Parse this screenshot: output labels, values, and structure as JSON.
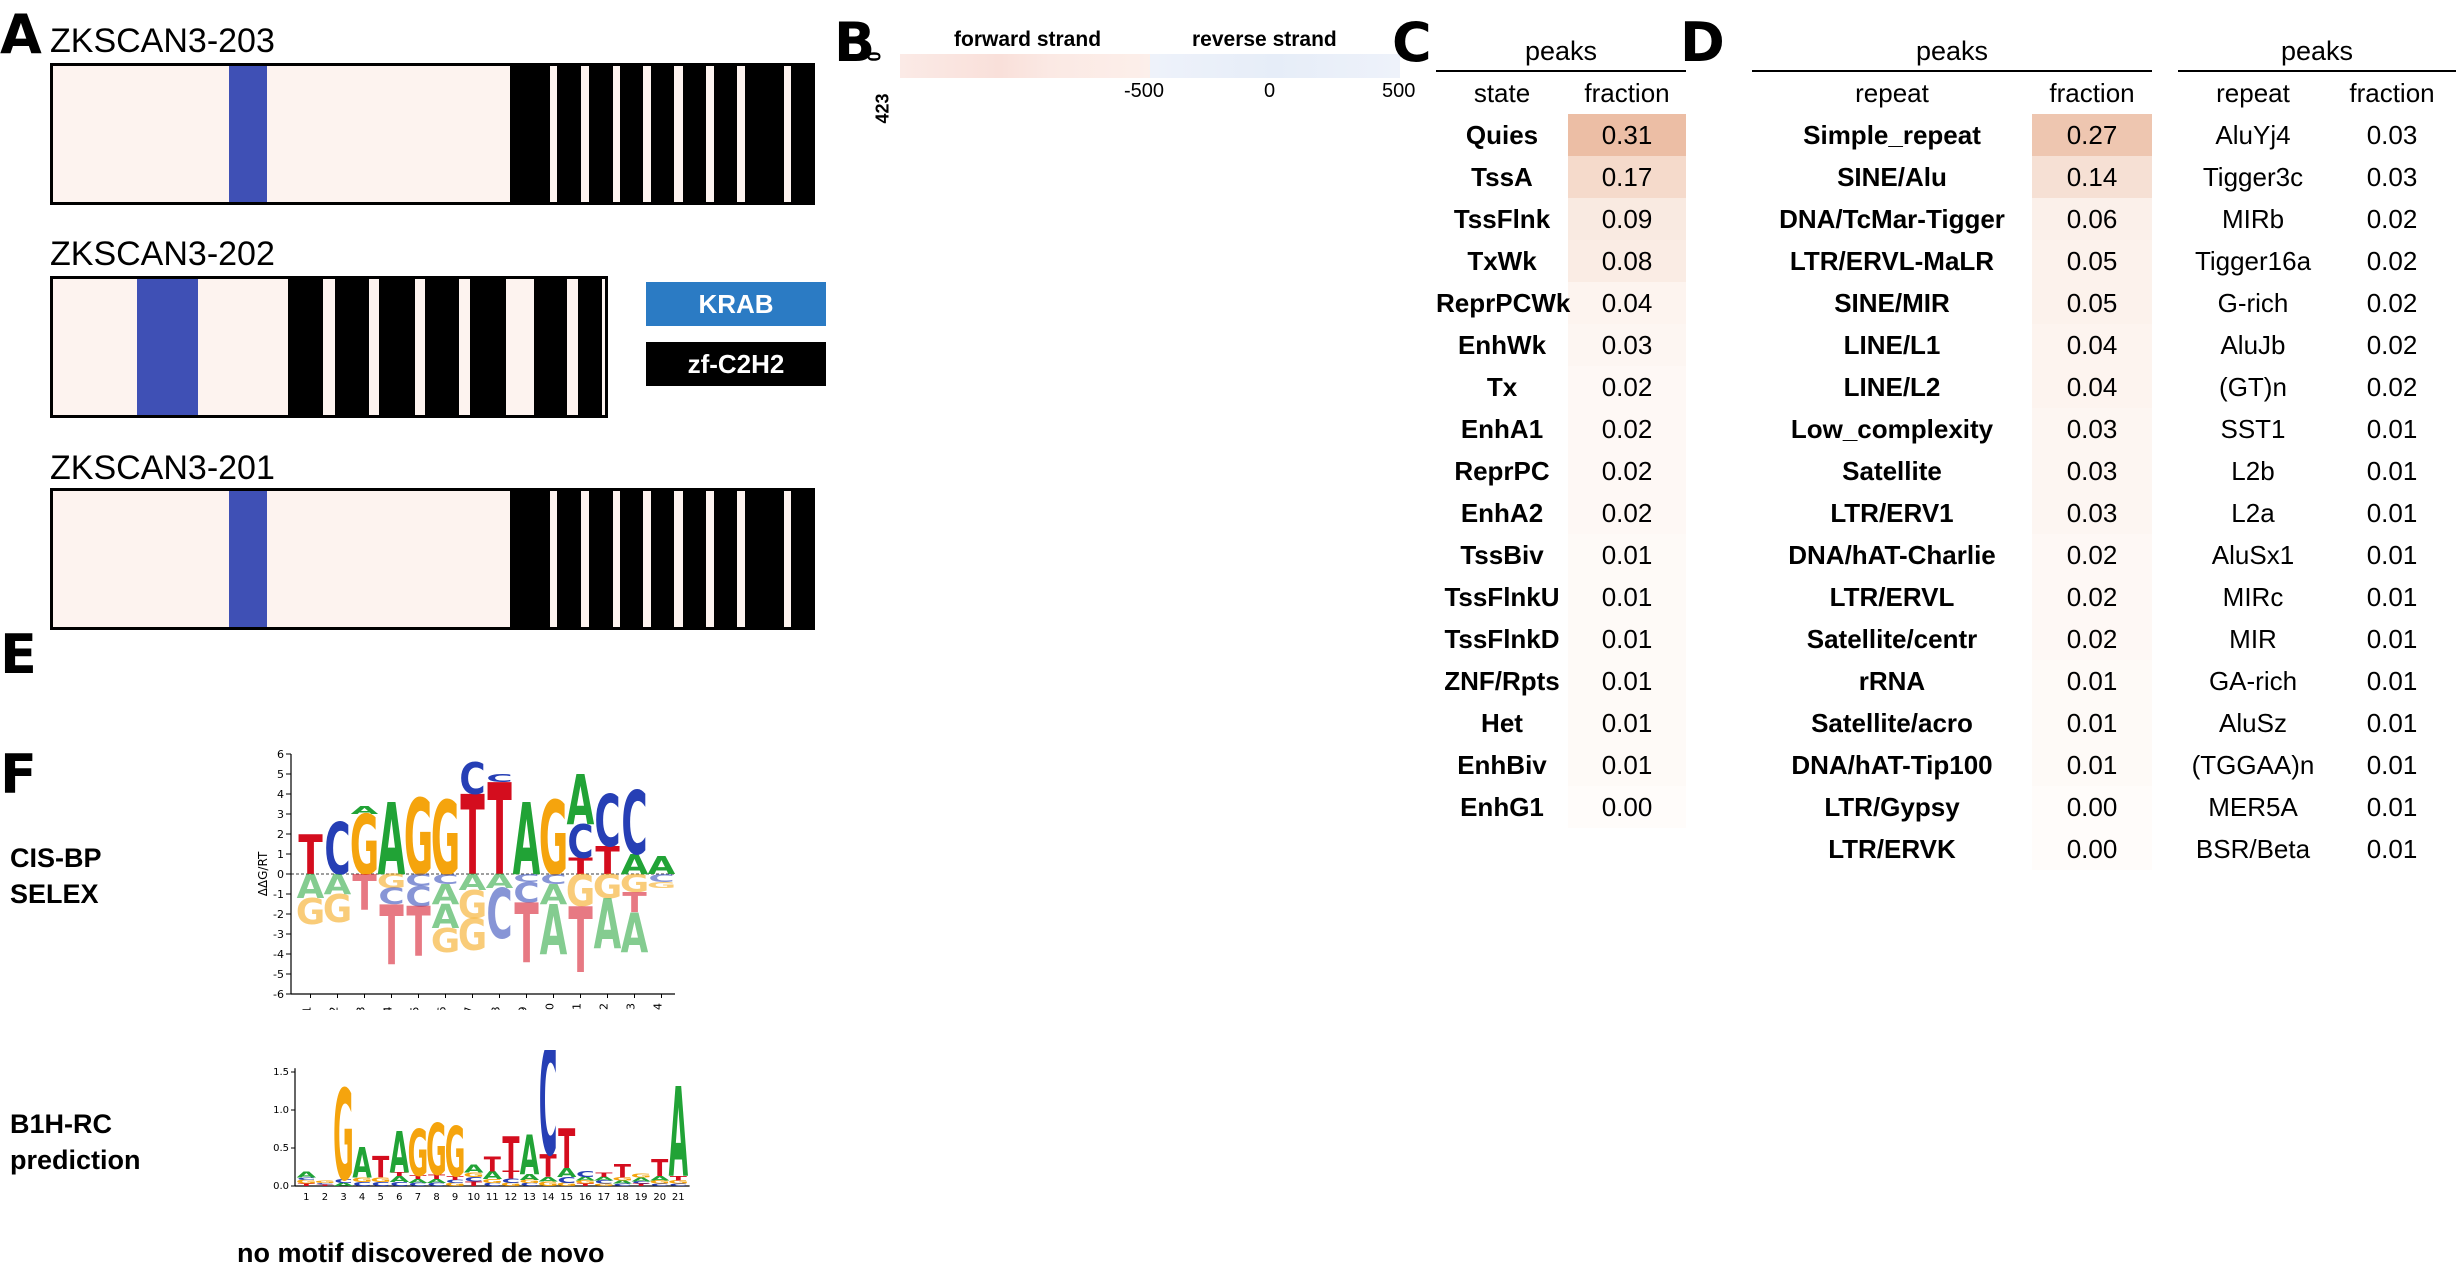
{
  "panels": {
    "A": "A",
    "B": "B",
    "C": "C",
    "D": "D",
    "E": "E",
    "F": "F"
  },
  "panel_a": {
    "transcripts": [
      {
        "name": "ZKSCAN3-203",
        "krab": [
          0.2325,
          0.2825
        ],
        "znf": [
          [
            0.6025,
            0.6545
          ],
          [
            0.6645,
            0.6955
          ],
          [
            0.7065,
            0.7375
          ],
          [
            0.7465,
            0.7775
          ],
          [
            0.7875,
            0.8185
          ],
          [
            0.8295,
            0.8605
          ],
          [
            0.8705,
            0.9015
          ],
          [
            0.9115,
            0.9625
          ],
          [
            0.9725,
            0.9995
          ]
        ]
      },
      {
        "name": "ZKSCAN3-202",
        "krab": [
          0.153,
          0.263
        ],
        "znf": [
          [
            0.425,
            0.489
          ],
          [
            0.51,
            0.572
          ],
          [
            0.59,
            0.655
          ],
          [
            0.674,
            0.736
          ],
          [
            0.756,
            0.82
          ],
          [
            0.872,
            0.932
          ],
          [
            0.951,
            0.995
          ]
        ]
      },
      {
        "name": "ZKSCAN3-201",
        "krab": [
          0.2325,
          0.2825
        ],
        "znf": [
          [
            0.6025,
            0.6545
          ],
          [
            0.6645,
            0.6955
          ],
          [
            0.7065,
            0.7375
          ],
          [
            0.7465,
            0.7775
          ],
          [
            0.7875,
            0.8185
          ],
          [
            0.8295,
            0.8605
          ],
          [
            0.8705,
            0.9015
          ],
          [
            0.9115,
            0.9625
          ],
          [
            0.9725,
            0.9995
          ]
        ]
      }
    ],
    "legend": [
      {
        "label": "KRAB",
        "color": "#2b7bc4"
      },
      {
        "label": "zf-C2H2",
        "color": "#000000"
      }
    ]
  },
  "panel_b": {
    "forward_label": "forward strand",
    "reverse_label": "reverse strand",
    "y_ticks": [
      "0",
      "423"
    ],
    "x_ticks": [
      "-500",
      "0",
      "500"
    ]
  },
  "panel_c": {
    "group": "peaks",
    "col1": "state",
    "col2": "fraction",
    "rows": [
      {
        "label": "Quies",
        "value": "0.31"
      },
      {
        "label": "TssA",
        "value": "0.17"
      },
      {
        "label": "TssFlnk",
        "value": "0.09"
      },
      {
        "label": "TxWk",
        "value": "0.08"
      },
      {
        "label": "ReprPCWk",
        "value": "0.04"
      },
      {
        "label": "EnhWk",
        "value": "0.03"
      },
      {
        "label": "Tx",
        "value": "0.02"
      },
      {
        "label": "EnhA1",
        "value": "0.02"
      },
      {
        "label": "ReprPC",
        "value": "0.02"
      },
      {
        "label": "EnhA2",
        "value": "0.02"
      },
      {
        "label": "TssBiv",
        "value": "0.01"
      },
      {
        "label": "TssFlnkU",
        "value": "0.01"
      },
      {
        "label": "TssFlnkD",
        "value": "0.01"
      },
      {
        "label": "ZNF/Rpts",
        "value": "0.01"
      },
      {
        "label": "Het",
        "value": "0.01"
      },
      {
        "label": "EnhBiv",
        "value": "0.01"
      },
      {
        "label": "EnhG1",
        "value": "0.00"
      }
    ]
  },
  "panel_d_left": {
    "group": "peaks",
    "col1": "repeat",
    "col2": "fraction",
    "rows": [
      {
        "label": "Simple_repeat",
        "value": "0.27"
      },
      {
        "label": "SINE/Alu",
        "value": "0.14"
      },
      {
        "label": "DNA/TcMar-Tigger",
        "value": "0.06"
      },
      {
        "label": "LTR/ERVL-MaLR",
        "value": "0.05"
      },
      {
        "label": "SINE/MIR",
        "value": "0.05"
      },
      {
        "label": "LINE/L1",
        "value": "0.04"
      },
      {
        "label": "LINE/L2",
        "value": "0.04"
      },
      {
        "label": "Low_complexity",
        "value": "0.03"
      },
      {
        "label": "Satellite",
        "value": "0.03"
      },
      {
        "label": "LTR/ERV1",
        "value": "0.03"
      },
      {
        "label": "DNA/hAT-Charlie",
        "value": "0.02"
      },
      {
        "label": "LTR/ERVL",
        "value": "0.02"
      },
      {
        "label": "Satellite/centr",
        "value": "0.02"
      },
      {
        "label": "rRNA",
        "value": "0.01"
      },
      {
        "label": "Satellite/acro",
        "value": "0.01"
      },
      {
        "label": "DNA/hAT-Tip100",
        "value": "0.01"
      },
      {
        "label": "LTR/Gypsy",
        "value": "0.00"
      },
      {
        "label": "LTR/ERVK",
        "value": "0.00"
      }
    ]
  },
  "panel_d_right": {
    "group": "peaks",
    "col1": "repeat",
    "col2": "fraction",
    "rows": [
      {
        "label": "AluYj4",
        "value": "0.03"
      },
      {
        "label": "Tigger3c",
        "value": "0.03"
      },
      {
        "label": "MIRb",
        "value": "0.02"
      },
      {
        "label": "Tigger16a",
        "value": "0.02"
      },
      {
        "label": "G-rich",
        "value": "0.02"
      },
      {
        "label": "AluJb",
        "value": "0.02"
      },
      {
        "label": "(GT)n",
        "value": "0.02"
      },
      {
        "label": "SST1",
        "value": "0.01"
      },
      {
        "label": "L2b",
        "value": "0.01"
      },
      {
        "label": "L2a",
        "value": "0.01"
      },
      {
        "label": "AluSx1",
        "value": "0.01"
      },
      {
        "label": "MIRc",
        "value": "0.01"
      },
      {
        "label": "MIR",
        "value": "0.01"
      },
      {
        "label": "GA-rich",
        "value": "0.01"
      },
      {
        "label": "AluSz",
        "value": "0.01"
      },
      {
        "label": "(TGGAA)n",
        "value": "0.01"
      },
      {
        "label": "MER5A",
        "value": "0.01"
      },
      {
        "label": "BSR/Beta",
        "value": "0.01"
      }
    ]
  },
  "panel_f": {
    "logo1": {
      "label_line1": "CIS-BP",
      "label_line2": "SELEX",
      "ylabel": "ΔΔG/RT",
      "y_ticks": [
        "6",
        "5",
        "4",
        "3",
        "2",
        "1",
        "0",
        "-1",
        "-2",
        "-3",
        "-4",
        "-5",
        "-6"
      ],
      "positions": [
        "1",
        "2",
        "3",
        "4",
        "5",
        "6",
        "7",
        "8",
        "9",
        "10",
        "11",
        "12",
        "13",
        "14"
      ],
      "top": [
        [
          {
            "b": "T",
            "h": 2.0
          }
        ],
        [
          {
            "b": "C",
            "h": 2.6
          }
        ],
        [
          {
            "b": "G",
            "h": 3.0
          },
          {
            "b": "A",
            "h": 0.4
          }
        ],
        [
          {
            "b": "A",
            "h": 3.6
          }
        ],
        [
          {
            "b": "G",
            "h": 3.8
          }
        ],
        [
          {
            "b": "G",
            "h": 3.7
          }
        ],
        [
          {
            "b": "T",
            "h": 4.0
          },
          {
            "b": "C",
            "h": 1.6
          }
        ],
        [
          {
            "b": "T",
            "h": 4.6
          },
          {
            "b": "C",
            "h": 0.4
          }
        ],
        [
          {
            "b": "A",
            "h": 3.6
          }
        ],
        [
          {
            "b": "G",
            "h": 3.7
          }
        ],
        [
          {
            "b": "T",
            "h": 0.8
          },
          {
            "b": "C",
            "h": 1.7
          },
          {
            "b": "A",
            "h": 2.5
          }
        ],
        [
          {
            "b": "T",
            "h": 1.4
          },
          {
            "b": "C",
            "h": 2.6
          }
        ],
        [
          {
            "b": "A",
            "h": 1.0
          },
          {
            "b": "C",
            "h": 3.2
          }
        ],
        [
          {
            "b": "A",
            "h": 0.9
          }
        ]
      ],
      "bottom": [
        [
          {
            "b": "A",
            "h": 1.2
          },
          {
            "b": "G",
            "h": 1.3
          }
        ],
        [
          {
            "b": "A",
            "h": 1.0
          },
          {
            "b": "G",
            "h": 1.4
          }
        ],
        [
          {
            "b": "T",
            "h": 1.8
          }
        ],
        [
          {
            "b": "G",
            "h": 0.7
          },
          {
            "b": "C",
            "h": 0.8
          },
          {
            "b": "T",
            "h": 3.0
          }
        ],
        [
          {
            "b": "C",
            "h": 0.6
          },
          {
            "b": "C",
            "h": 1.0
          },
          {
            "b": "T",
            "h": 2.5
          }
        ],
        [
          {
            "b": "C",
            "h": 0.5
          },
          {
            "b": "A",
            "h": 1.0
          },
          {
            "b": "A",
            "h": 1.2
          },
          {
            "b": "G",
            "h": 1.2
          }
        ],
        [
          {
            "b": "A",
            "h": 0.8
          },
          {
            "b": "G",
            "h": 1.4
          },
          {
            "b": "G",
            "h": 1.6
          }
        ],
        [
          {
            "b": "A",
            "h": 0.7
          },
          {
            "b": "C",
            "h": 2.5
          }
        ],
        [
          {
            "b": "C",
            "h": 0.4
          },
          {
            "b": "C",
            "h": 1.0
          },
          {
            "b": "T",
            "h": 3.0
          }
        ],
        [
          {
            "b": "C",
            "h": 0.5
          },
          {
            "b": "A",
            "h": 1.0
          },
          {
            "b": "A",
            "h": 2.5
          }
        ],
        [
          {
            "b": "G",
            "h": 1.6
          },
          {
            "b": "T",
            "h": 3.3
          }
        ],
        [
          {
            "b": "G",
            "h": 1.2
          },
          {
            "b": "A",
            "h": 2.5
          }
        ],
        [
          {
            "b": "G",
            "h": 0.9
          },
          {
            "b": "T",
            "h": 1.0
          },
          {
            "b": "A",
            "h": 2.0
          }
        ],
        [
          {
            "b": "C",
            "h": 0.4
          },
          {
            "b": "G",
            "h": 0.3
          }
        ]
      ]
    },
    "logo2": {
      "label_line1": "B1H-RC",
      "label_line2": "prediction",
      "y_ticks": [
        "1.5",
        "1.0",
        "0.5",
        "0.0"
      ],
      "positions": [
        "1",
        "2",
        "3",
        "4",
        "5",
        "6",
        "7",
        "8",
        "9",
        "10",
        "11",
        "12",
        "13",
        "14",
        "15",
        "16",
        "17",
        "18",
        "19",
        "20",
        "21"
      ],
      "stacks": [
        [
          {
            "b": "T",
            "h": 0.03
          },
          {
            "b": "G",
            "h": 0.05
          },
          {
            "b": "C",
            "h": 0.03
          },
          {
            "b": "A",
            "h": 0.08
          }
        ],
        [
          {
            "b": "T",
            "h": 0.02
          },
          {
            "b": "C",
            "h": 0.02
          },
          {
            "b": "G",
            "h": 0.03
          }
        ],
        [
          {
            "b": "A",
            "h": 0.04
          },
          {
            "b": "C",
            "h": 0.05
          },
          {
            "b": "G",
            "h": 1.2
          }
        ],
        [
          {
            "b": "C",
            "h": 0.05
          },
          {
            "b": "G",
            "h": 0.06
          },
          {
            "b": "A",
            "h": 0.4
          }
        ],
        [
          {
            "b": "C",
            "h": 0.05
          },
          {
            "b": "G",
            "h": 0.06
          },
          {
            "b": "T",
            "h": 0.28
          }
        ],
        [
          {
            "b": "C",
            "h": 0.05
          },
          {
            "b": "A",
            "h": 0.08
          },
          {
            "b": "T",
            "h": 0.05
          },
          {
            "b": "A",
            "h": 0.55
          }
        ],
        [
          {
            "b": "C",
            "h": 0.04
          },
          {
            "b": "A",
            "h": 0.05
          },
          {
            "b": "T",
            "h": 0.05
          },
          {
            "b": "G",
            "h": 0.62
          }
        ],
        [
          {
            "b": "C",
            "h": 0.04
          },
          {
            "b": "A",
            "h": 0.05
          },
          {
            "b": "T",
            "h": 0.06
          },
          {
            "b": "G",
            "h": 0.68
          }
        ],
        [
          {
            "b": "G",
            "h": 0.04
          },
          {
            "b": "C",
            "h": 0.04
          },
          {
            "b": "T",
            "h": 0.05
          },
          {
            "b": "G",
            "h": 0.66
          }
        ],
        [
          {
            "b": "T",
            "h": 0.06
          },
          {
            "b": "C",
            "h": 0.06
          },
          {
            "b": "G",
            "h": 0.06
          },
          {
            "b": "A",
            "h": 0.1
          }
        ],
        [
          {
            "b": "C",
            "h": 0.04
          },
          {
            "b": "G",
            "h": 0.05
          },
          {
            "b": "A",
            "h": 0.1
          },
          {
            "b": "T",
            "h": 0.2
          }
        ],
        [
          {
            "b": "G",
            "h": 0.04
          },
          {
            "b": "C",
            "h": 0.06
          },
          {
            "b": "T",
            "h": 0.1
          },
          {
            "b": "T",
            "h": 0.45
          }
        ],
        [
          {
            "b": "C",
            "h": 0.04
          },
          {
            "b": "G",
            "h": 0.04
          },
          {
            "b": "A",
            "h": 0.08
          },
          {
            "b": "A",
            "h": 0.52
          }
        ],
        [
          {
            "b": "G",
            "h": 0.06
          },
          {
            "b": "A",
            "h": 0.06
          },
          {
            "b": "T",
            "h": 0.3
          },
          {
            "b": "C",
            "h": 1.45
          }
        ],
        [
          {
            "b": "G",
            "h": 0.04
          },
          {
            "b": "C",
            "h": 0.08
          },
          {
            "b": "A",
            "h": 0.12
          },
          {
            "b": "T",
            "h": 0.52
          }
        ],
        [
          {
            "b": "T",
            "h": 0.03
          },
          {
            "b": "G",
            "h": 0.04
          },
          {
            "b": "A",
            "h": 0.05
          },
          {
            "b": "C",
            "h": 0.08
          }
        ],
        [
          {
            "b": "G",
            "h": 0.03
          },
          {
            "b": "C",
            "h": 0.04
          },
          {
            "b": "A",
            "h": 0.05
          },
          {
            "b": "T",
            "h": 0.06
          }
        ],
        [
          {
            "b": "C",
            "h": 0.03
          },
          {
            "b": "A",
            "h": 0.04
          },
          {
            "b": "G",
            "h": 0.04
          },
          {
            "b": "T",
            "h": 0.18
          }
        ],
        [
          {
            "b": "T",
            "h": 0.03
          },
          {
            "b": "C",
            "h": 0.03
          },
          {
            "b": "A",
            "h": 0.05
          },
          {
            "b": "G",
            "h": 0.05
          }
        ],
        [
          {
            "b": "C",
            "h": 0.03
          },
          {
            "b": "G",
            "h": 0.04
          },
          {
            "b": "A",
            "h": 0.06
          },
          {
            "b": "T",
            "h": 0.22
          }
        ],
        [
          {
            "b": "C",
            "h": 0.03
          },
          {
            "b": "G",
            "h": 0.04
          },
          {
            "b": "T",
            "h": 0.06
          },
          {
            "b": "A",
            "h": 1.18
          }
        ]
      ]
    },
    "note": "no motif discovered de novo"
  },
  "colors": {
    "A": "#21a336",
    "C": "#263fb5",
    "G": "#f5a40d",
    "T": "#d40d1e"
  }
}
